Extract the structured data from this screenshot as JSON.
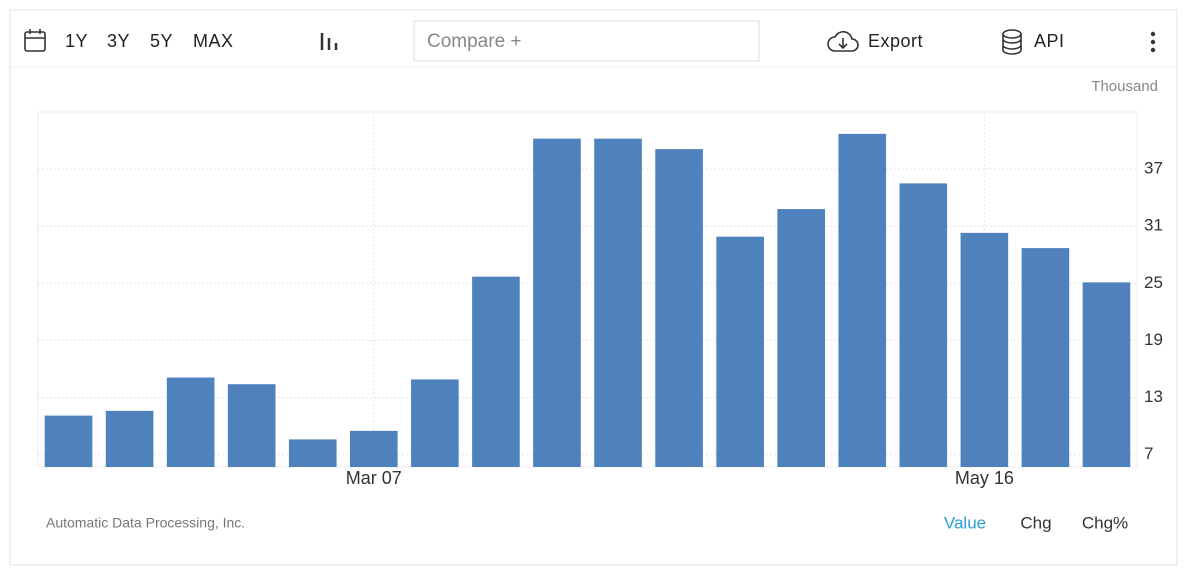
{
  "toolbar": {
    "ranges": [
      "1Y",
      "3Y",
      "5Y",
      "MAX"
    ],
    "compare": "Compare +",
    "export": "Export",
    "api": "API"
  },
  "chart_data": {
    "type": "bar",
    "unit": "Thousand",
    "source": "Automatic Data Processing, Inc.",
    "tabs": [
      "Value",
      "Chg",
      "Chg%"
    ],
    "categories": [
      null,
      null,
      null,
      null,
      null,
      "Mar 07",
      null,
      null,
      null,
      null,
      null,
      null,
      null,
      null,
      null,
      "May 16",
      null,
      null
    ],
    "values": [
      11.1,
      11.6,
      15.1,
      14.4,
      8.6,
      9.5,
      14.9,
      25.7,
      40.2,
      40.2,
      39.1,
      29.9,
      32.8,
      40.7,
      35.5,
      30.3,
      28.7,
      25.1
    ],
    "color": "#4f81bd",
    "ylim": [
      5.7,
      43
    ],
    "yticks": [
      7,
      13,
      19,
      25,
      31,
      37
    ],
    "grid": true
  }
}
